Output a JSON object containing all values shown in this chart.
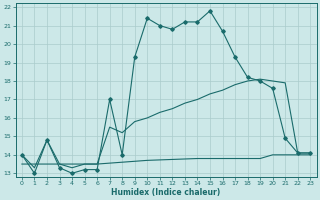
{
  "xlabel": "Humidex (Indice chaleur)",
  "xlim": [
    -0.5,
    23.5
  ],
  "ylim": [
    12.8,
    22.2
  ],
  "yticks": [
    13,
    14,
    15,
    16,
    17,
    18,
    19,
    20,
    21,
    22
  ],
  "xticks": [
    0,
    1,
    2,
    3,
    4,
    5,
    6,
    7,
    8,
    9,
    10,
    11,
    12,
    13,
    14,
    15,
    16,
    17,
    18,
    19,
    20,
    21,
    22,
    23
  ],
  "bg_color": "#cce8e8",
  "line_color": "#1a6b6b",
  "grid_color": "#aacccc",
  "curve1_x": [
    0,
    1,
    2,
    3,
    4,
    5,
    6,
    7,
    8,
    9,
    10,
    11,
    12,
    13,
    14,
    15,
    16,
    17,
    18,
    19,
    20,
    21,
    22,
    23
  ],
  "curve1_y": [
    14.0,
    13.0,
    14.8,
    13.3,
    13.0,
    13.2,
    13.2,
    17.0,
    14.0,
    19.3,
    21.4,
    21.0,
    20.8,
    21.2,
    21.2,
    21.8,
    20.7,
    19.3,
    18.2,
    18.0,
    17.6,
    14.9,
    14.1,
    14.1
  ],
  "curve2_x": [
    0,
    1,
    2,
    3,
    4,
    5,
    6,
    7,
    8,
    9,
    10,
    11,
    12,
    13,
    14,
    15,
    16,
    17,
    18,
    19,
    20,
    21,
    22,
    23
  ],
  "curve2_y": [
    14.0,
    13.3,
    14.8,
    13.5,
    13.3,
    13.5,
    13.5,
    15.5,
    15.2,
    15.8,
    16.0,
    16.3,
    16.5,
    16.8,
    17.0,
    17.3,
    17.5,
    17.8,
    18.0,
    18.1,
    18.0,
    17.9,
    14.1,
    14.1
  ],
  "curve3_x": [
    0,
    6,
    10,
    14,
    18,
    19,
    20,
    21,
    22,
    23
  ],
  "curve3_y": [
    13.5,
    13.5,
    13.7,
    13.8,
    13.8,
    13.8,
    14.0,
    14.0,
    14.0,
    14.0
  ]
}
